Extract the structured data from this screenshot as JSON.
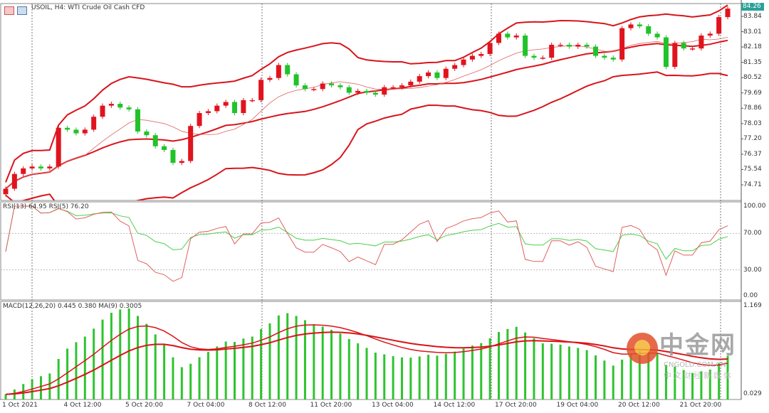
{
  "window": {
    "title": "USOIL, H4:  WTI Crude Oil Cash CFD",
    "current_price": "84.26"
  },
  "colors": {
    "bull": "#e0141e",
    "bear": "#22c22a",
    "band": "#d8141b",
    "rsi13": "#4ccf4c",
    "rsi5": "#e06060",
    "macd_hist": "#2ec42e",
    "macd_line": "#d81418",
    "price_tag": "#2aa198"
  },
  "chart_data": {
    "type": "candlestick",
    "symbol": "USOIL",
    "timeframe": "H4",
    "closes": [
      74.5,
      75.3,
      75.6,
      75.7,
      75.6,
      75.7,
      77.8,
      77.7,
      77.5,
      77.7,
      78.4,
      79.0,
      79.1,
      78.9,
      78.8,
      77.6,
      77.4,
      76.8,
      76.6,
      75.9,
      76.0,
      77.9,
      78.6,
      78.7,
      79.0,
      79.2,
      78.6,
      79.3,
      79.3,
      80.4,
      80.5,
      81.2,
      80.7,
      80.1,
      79.9,
      79.9,
      80.2,
      80.1,
      80.0,
      79.7,
      79.8,
      79.7,
      79.6,
      80.0,
      80.0,
      80.1,
      80.3,
      80.6,
      80.8,
      80.5,
      81.0,
      81.2,
      81.5,
      81.7,
      81.8,
      82.4,
      82.9,
      82.7,
      82.8,
      81.7,
      81.6,
      81.6,
      82.3,
      82.3,
      82.2,
      82.3,
      82.2,
      81.7,
      81.6,
      81.5,
      83.2,
      83.4,
      83.3,
      82.9,
      82.7,
      81.1,
      82.4,
      82.1,
      82.1,
      82.8,
      82.9,
      83.8,
      84.26
    ],
    "bollinger_period": 20,
    "ma_period": 10,
    "y_ticks": [
      "83.84",
      "83.01",
      "82.18",
      "81.35",
      "80.52",
      "79.69",
      "78.86",
      "78.03",
      "77.20",
      "76.37",
      "75.54",
      "74.71"
    ],
    "x_ticks": [
      "1 Oct 2021",
      "4 Oct 12:00",
      "5 Oct 20:00",
      "7 Oct 04:00",
      "8 Oct 12:00",
      "11 Oct 20:00",
      "13 Oct 04:00",
      "14 Oct 12:00",
      "17 Oct 20:00",
      "19 Oct 04:00",
      "20 Oct 12:00",
      "21 Oct 20:00"
    ],
    "rsi": {
      "label": "RSI(13) 64.95 RSI(5) 76.20",
      "periods": [
        13,
        5
      ],
      "values": [
        64.95,
        76.2
      ],
      "y_ticks": [
        "100.00",
        "70.00",
        "30.00",
        "0.00"
      ],
      "levels": [
        70,
        30
      ]
    },
    "macd": {
      "label": "MACD(12,26,20) 0.445 0.380 MA(9) 0.3005",
      "fast": 12,
      "slow": 26,
      "signal": 20,
      "ma": 9,
      "y_ticks": [
        "1.169",
        "0.029"
      ]
    }
  },
  "watermark": {
    "cn": "中金网",
    "en": "CNGOLD.COM.CN",
    "sub": "中文财经新媒体"
  }
}
